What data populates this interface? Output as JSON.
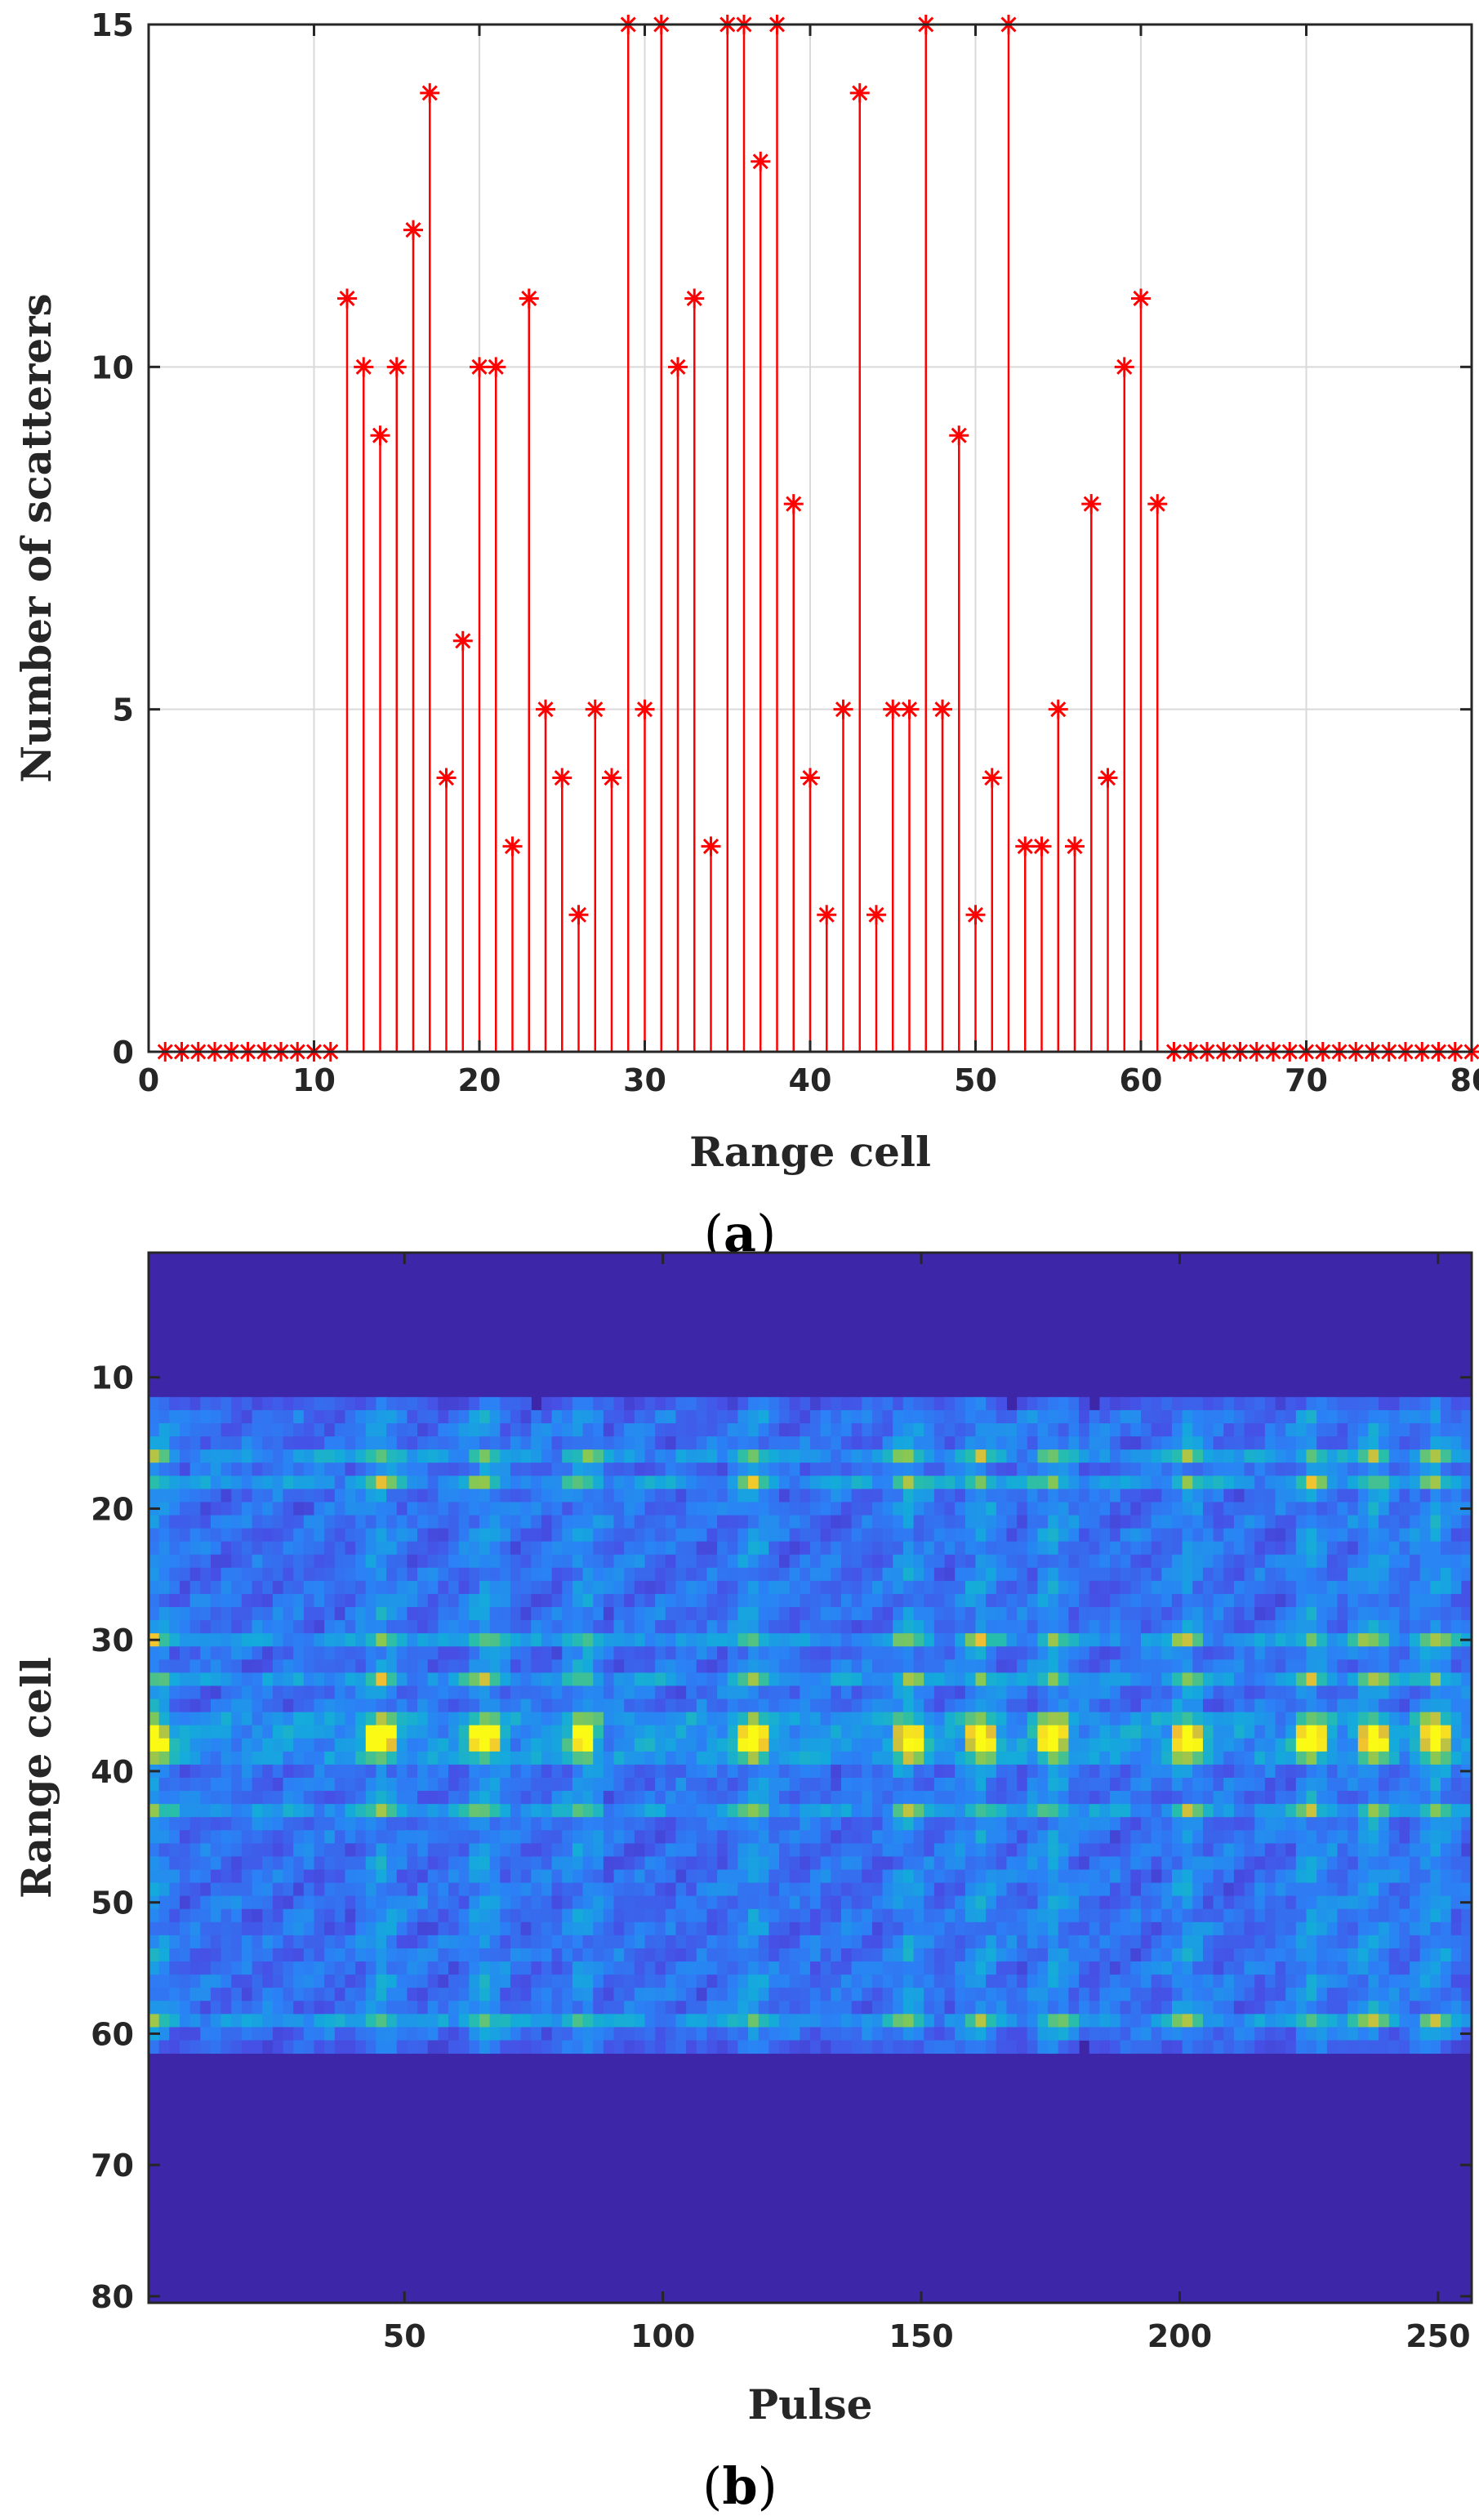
{
  "chart_data": [
    {
      "type": "stem",
      "panel_label": "a",
      "xlabel": "Range cell",
      "ylabel": "Number of scatterers",
      "xlim": [
        0,
        80
      ],
      "ylim": [
        0,
        15
      ],
      "xticks": [
        0,
        10,
        20,
        30,
        40,
        50,
        60,
        70,
        80
      ],
      "yticks": [
        0,
        5,
        10,
        15
      ],
      "grid": true,
      "marker": "asterisk",
      "color": "#ff0000",
      "x": [
        1,
        2,
        3,
        4,
        5,
        6,
        7,
        8,
        9,
        10,
        11,
        12,
        13,
        14,
        15,
        16,
        17,
        18,
        19,
        20,
        21,
        22,
        23,
        24,
        25,
        26,
        27,
        28,
        29,
        30,
        31,
        32,
        33,
        34,
        35,
        36,
        37,
        38,
        39,
        40,
        41,
        42,
        43,
        44,
        45,
        46,
        47,
        48,
        49,
        50,
        51,
        52,
        53,
        54,
        55,
        56,
        57,
        58,
        59,
        60,
        61,
        62,
        63,
        64,
        65,
        66,
        67,
        68,
        69,
        70,
        71,
        72,
        73,
        74,
        75,
        76,
        77,
        78,
        79,
        80
      ],
      "y": [
        0,
        0,
        0,
        0,
        0,
        0,
        0,
        0,
        0,
        0,
        0,
        11,
        10,
        9,
        10,
        12,
        14,
        4,
        6,
        10,
        10,
        3,
        11,
        5,
        4,
        2,
        5,
        4,
        15,
        5,
        15,
        10,
        11,
        3,
        15,
        15,
        13,
        15,
        8,
        4,
        2,
        5,
        14,
        2,
        5,
        5,
        15,
        5,
        9,
        2,
        4,
        15,
        3,
        3,
        5,
        3,
        8,
        4,
        10,
        11,
        8,
        0,
        0,
        0,
        0,
        0,
        0,
        0,
        0,
        0,
        0,
        0,
        0,
        0,
        0,
        0,
        0,
        0,
        0,
        0
      ]
    },
    {
      "type": "heatmap",
      "panel_label": "b",
      "xlabel": "Pulse",
      "ylabel": "Range cell",
      "xlim": [
        1,
        256
      ],
      "ylim": [
        1,
        80
      ],
      "y_reversed": true,
      "xticks": [
        50,
        100,
        150,
        200,
        250
      ],
      "yticks": [
        10,
        20,
        30,
        40,
        50,
        60,
        70,
        80
      ],
      "colormap": "parula",
      "background_color": "#3e26a8",
      "active_rows": [
        12,
        61
      ],
      "bright_rows": [
        16,
        18,
        30,
        33,
        36,
        37,
        38,
        39,
        43,
        59
      ],
      "hotspot_pulses": [
        1,
        45,
        65,
        84,
        117,
        147,
        161,
        175,
        201,
        225,
        237,
        249
      ]
    }
  ]
}
